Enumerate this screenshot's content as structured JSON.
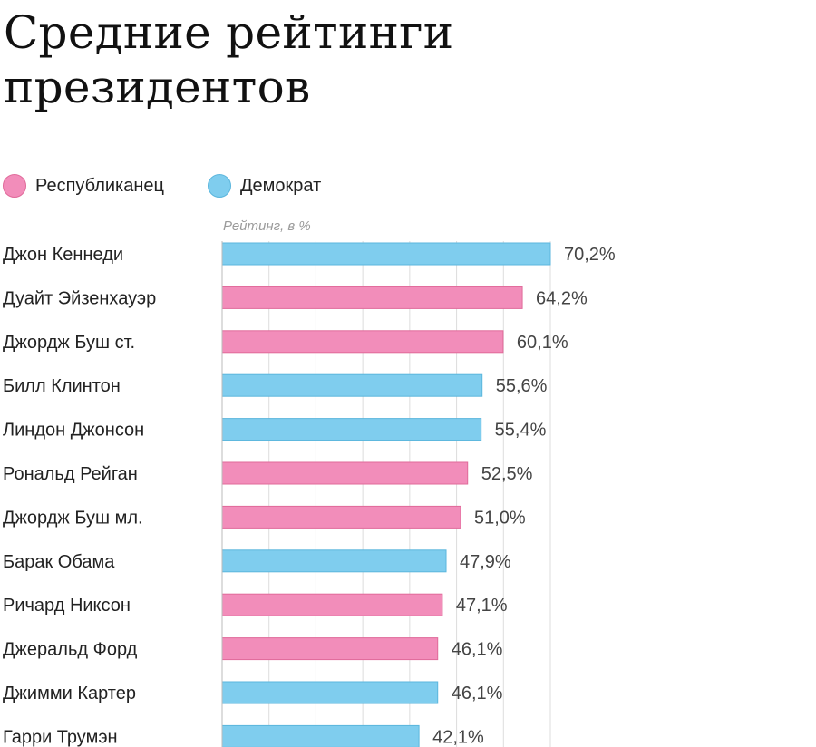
{
  "colors": {
    "republican": "#f28dba",
    "republican_stroke": "#e06a9a",
    "democrat": "#7fcdee",
    "democrat_stroke": "#5bb6dd",
    "grid": "#dddddd"
  },
  "chart_data": {
    "type": "bar",
    "orientation": "horizontal",
    "title": "Средние рейтинги президентов",
    "axis_label": "Рейтинг, в %",
    "xlim": [
      0,
      70.2
    ],
    "grid": true,
    "legend_position": "top-left",
    "legend": [
      {
        "key": "republican",
        "label": "Республиканец"
      },
      {
        "key": "democrat",
        "label": "Демократ"
      }
    ],
    "bars": [
      {
        "name": "Джон Кеннеди",
        "value": 70.2,
        "label": "70,2%",
        "party": "democrat"
      },
      {
        "name": "Дуайт Эйзенхауэр",
        "value": 64.2,
        "label": "64,2%",
        "party": "republican"
      },
      {
        "name": "Джордж Буш ст.",
        "value": 60.1,
        "label": "60,1%",
        "party": "republican"
      },
      {
        "name": "Билл Клинтон",
        "value": 55.6,
        "label": "55,6%",
        "party": "democrat"
      },
      {
        "name": "Линдон Джонсон",
        "value": 55.4,
        "label": "55,4%",
        "party": "democrat"
      },
      {
        "name": "Рональд Рейган",
        "value": 52.5,
        "label": "52,5%",
        "party": "republican"
      },
      {
        "name": "Джордж Буш мл.",
        "value": 51.0,
        "label": "51,0%",
        "party": "republican"
      },
      {
        "name": "Барак Обама",
        "value": 47.9,
        "label": "47,9%",
        "party": "democrat"
      },
      {
        "name": "Ричард Никсон",
        "value": 47.1,
        "label": "47,1%",
        "party": "republican"
      },
      {
        "name": "Джеральд Форд",
        "value": 46.1,
        "label": "46,1%",
        "party": "republican"
      },
      {
        "name": "Джимми Картер",
        "value": 46.1,
        "label": "46,1%",
        "party": "democrat"
      },
      {
        "name": "Гарри Трумэн",
        "value": 42.1,
        "label": "42,1%",
        "party": "democrat"
      }
    ]
  }
}
